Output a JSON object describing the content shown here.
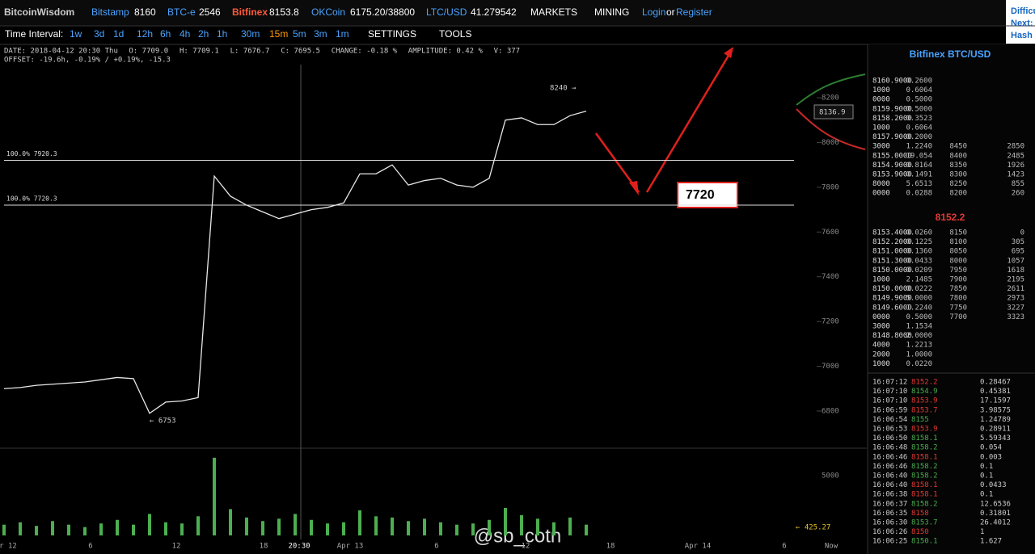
{
  "top_bar": {
    "brand": "BitcoinWisdom",
    "tickers": [
      {
        "name": "Bitstamp",
        "price": "8160"
      },
      {
        "name": "BTC-e",
        "price": "2546"
      },
      {
        "name": "Bitfinex",
        "price": "8153.8"
      },
      {
        "name": "OKCoin",
        "price": "6175.20/38800"
      },
      {
        "name": "LTC/USD",
        "price": "41.279542"
      }
    ],
    "markets": "MARKETS",
    "mining": "MINING",
    "login": "Login",
    "or": "or",
    "register": "Register",
    "side_panel": [
      "Difficu",
      "Next:",
      "Hash R"
    ]
  },
  "toolbar": {
    "label": "Time Interval:",
    "intervals": [
      "1w",
      "3d",
      "1d",
      "12h",
      "6h",
      "4h",
      "2h",
      "1h",
      "30m",
      "15m",
      "5m",
      "3m",
      "1m"
    ],
    "settings": "SETTINGS",
    "tools": "TOOLS"
  },
  "info": {
    "line1": [
      "DATE: 2018-04-12 20:30 Thu",
      "O: 7709.0",
      "H: 7709.1",
      "L: 7676.7",
      "C: 7695.5",
      "CHANGE: -0.18 %",
      "AMPLITUDE: 0.42 %",
      "V: 377"
    ],
    "line2": "OFFSET: -19.6h, -0.19% / +0.19%, -15.3"
  },
  "chart_data": {
    "type": "line",
    "color": "#e8e8e8",
    "values": [
      6900,
      6905,
      6915,
      6920,
      6925,
      6930,
      6940,
      6950,
      6945,
      6790,
      6840,
      6845,
      6860,
      7850,
      7760,
      7720,
      7690,
      7660,
      7680,
      7700,
      7710,
      7730,
      7860,
      7860,
      7900,
      7810,
      7830,
      7840,
      7810,
      7800,
      7840,
      8100,
      8110,
      8080,
      8080,
      8120,
      8140
    ],
    "volume": [
      900,
      1100,
      800,
      1200,
      900,
      700,
      1000,
      1300,
      900,
      1800,
      1100,
      1000,
      1600,
      6500,
      2200,
      1500,
      1200,
      1400,
      1800,
      1300,
      1000,
      1100,
      2100,
      1600,
      1500,
      1200,
      1400,
      1100,
      900,
      1000,
      1300,
      2300,
      1700,
      1400,
      1100,
      1500,
      900
    ],
    "volume_color": "#4caf50",
    "ylim": [
      6634,
      8348
    ],
    "yticks": [
      6800,
      7000,
      7200,
      7400,
      7600,
      7800,
      8000,
      8200
    ],
    "vlim": [
      0,
      7300
    ],
    "vticks": [
      5000
    ],
    "x_labels": [
      "r 12",
      "6",
      "12",
      "18",
      "20:30",
      "Apr 13",
      "6",
      "12",
      "18",
      "Apr 14",
      "6",
      "Now"
    ],
    "levels": [
      {
        "label": "100.0% 7920.3",
        "value": 7920.3
      },
      {
        "label": "100.0% 7720.3",
        "value": 7720.3
      }
    ],
    "high_label": "8240 →",
    "low_label": "← 6753",
    "target": "7720",
    "last_price": "8136.9",
    "volume_label": "← 425.27",
    "watermark": "@sb_cotn"
  },
  "order_book": {
    "title": "Bitfinex BTC/USD",
    "asks": [
      [
        "8160.9000",
        "0.2600",
        "",
        ""
      ],
      [
        "1000",
        "0.6064",
        "",
        ""
      ],
      [
        "0000",
        "0.5000",
        "",
        ""
      ],
      [
        "8159.9000",
        "0.5000",
        "",
        ""
      ],
      [
        "8158.2000",
        "0.3523",
        "",
        ""
      ],
      [
        "1000",
        "0.6064",
        "",
        ""
      ],
      [
        "8157.9000",
        "0.2000",
        "",
        ""
      ],
      [
        "3000",
        "1.2240",
        "8450",
        "2850"
      ],
      [
        "8155.0000",
        "19.054",
        "8400",
        "2485"
      ],
      [
        "8154.9000",
        "0.8164",
        "8350",
        "1926"
      ],
      [
        "8153.9000",
        "0.1491",
        "8300",
        "1423"
      ],
      [
        "8000",
        "5.6513",
        "8250",
        "855"
      ],
      [
        "0000",
        "0.0288",
        "8200",
        "260"
      ]
    ],
    "last": "8152.2",
    "bids": [
      [
        "8153.4000",
        "0.0260",
        "8150",
        "0"
      ],
      [
        "8152.2000",
        "0.1225",
        "8100",
        "305"
      ],
      [
        "8151.0000",
        "0.1360",
        "8050",
        "695"
      ],
      [
        "8151.3000",
        "0.0433",
        "8000",
        "1057"
      ],
      [
        "8150.0000",
        "0.0209",
        "7950",
        "1618"
      ],
      [
        "1000",
        "2.1485",
        "7900",
        "2195"
      ],
      [
        "8150.0000",
        "0.0222",
        "7850",
        "2611"
      ],
      [
        "8149.9000",
        "5.0000",
        "7800",
        "2973"
      ],
      [
        "8149.6000",
        "1.2240",
        "7750",
        "3227"
      ],
      [
        "0000",
        "0.5000",
        "7700",
        "3323"
      ],
      [
        "3000",
        "1.1534",
        "",
        ""
      ],
      [
        "8148.8000",
        "2.0000",
        "",
        ""
      ],
      [
        "4000",
        "1.2213",
        "",
        ""
      ],
      [
        "2000",
        "1.0000",
        "",
        ""
      ],
      [
        "1000",
        "0.0220",
        "",
        ""
      ]
    ]
  },
  "trades": [
    {
      "time": "16:07:12",
      "price": "8152.2",
      "amount": "0.28467",
      "color": "#e53935"
    },
    {
      "time": "16:07:10",
      "price": "8154.9",
      "amount": "0.45381",
      "color": "#4caf50"
    },
    {
      "time": "16:07:10",
      "price": "8153.9",
      "amount": "17.1597",
      "color": "#e53935"
    },
    {
      "time": "16:06:59",
      "price": "8153.7",
      "amount": "3.98575",
      "color": "#e53935"
    },
    {
      "time": "16:06:54",
      "price": "8155",
      "amount": "1.24789",
      "color": "#4caf50"
    },
    {
      "time": "16:06:53",
      "price": "8153.9",
      "amount": "0.28911",
      "color": "#e53935"
    },
    {
      "time": "16:06:50",
      "price": "8158.1",
      "amount": "5.59343",
      "color": "#4caf50"
    },
    {
      "time": "16:06:48",
      "price": "8158.2",
      "amount": "0.054",
      "color": "#4caf50"
    },
    {
      "time": "16:06:46",
      "price": "8158.1",
      "amount": "0.003",
      "color": "#e53935"
    },
    {
      "time": "16:06:46",
      "price": "8158.2",
      "amount": "0.1",
      "color": "#4caf50"
    },
    {
      "time": "16:06:40",
      "price": "8158.2",
      "amount": "0.1",
      "color": "#4caf50"
    },
    {
      "time": "16:06:40",
      "price": "8158.1",
      "amount": "0.0433",
      "color": "#e53935"
    },
    {
      "time": "16:06:38",
      "price": "8158.1",
      "amount": "0.1",
      "color": "#e53935"
    },
    {
      "time": "16:06:37",
      "price": "8158.2",
      "amount": "12.6536",
      "color": "#4caf50"
    },
    {
      "time": "16:06:35",
      "price": "8158",
      "amount": "0.31801",
      "color": "#e53935"
    },
    {
      "time": "16:06:30",
      "price": "8153.7",
      "amount": "26.4012",
      "color": "#4caf50"
    },
    {
      "time": "16:06:26",
      "price": "8150",
      "amount": "1",
      "color": "#e53935"
    },
    {
      "time": "16:06:25",
      "price": "8150.1",
      "amount": "1.627",
      "color": "#4caf50"
    }
  ]
}
